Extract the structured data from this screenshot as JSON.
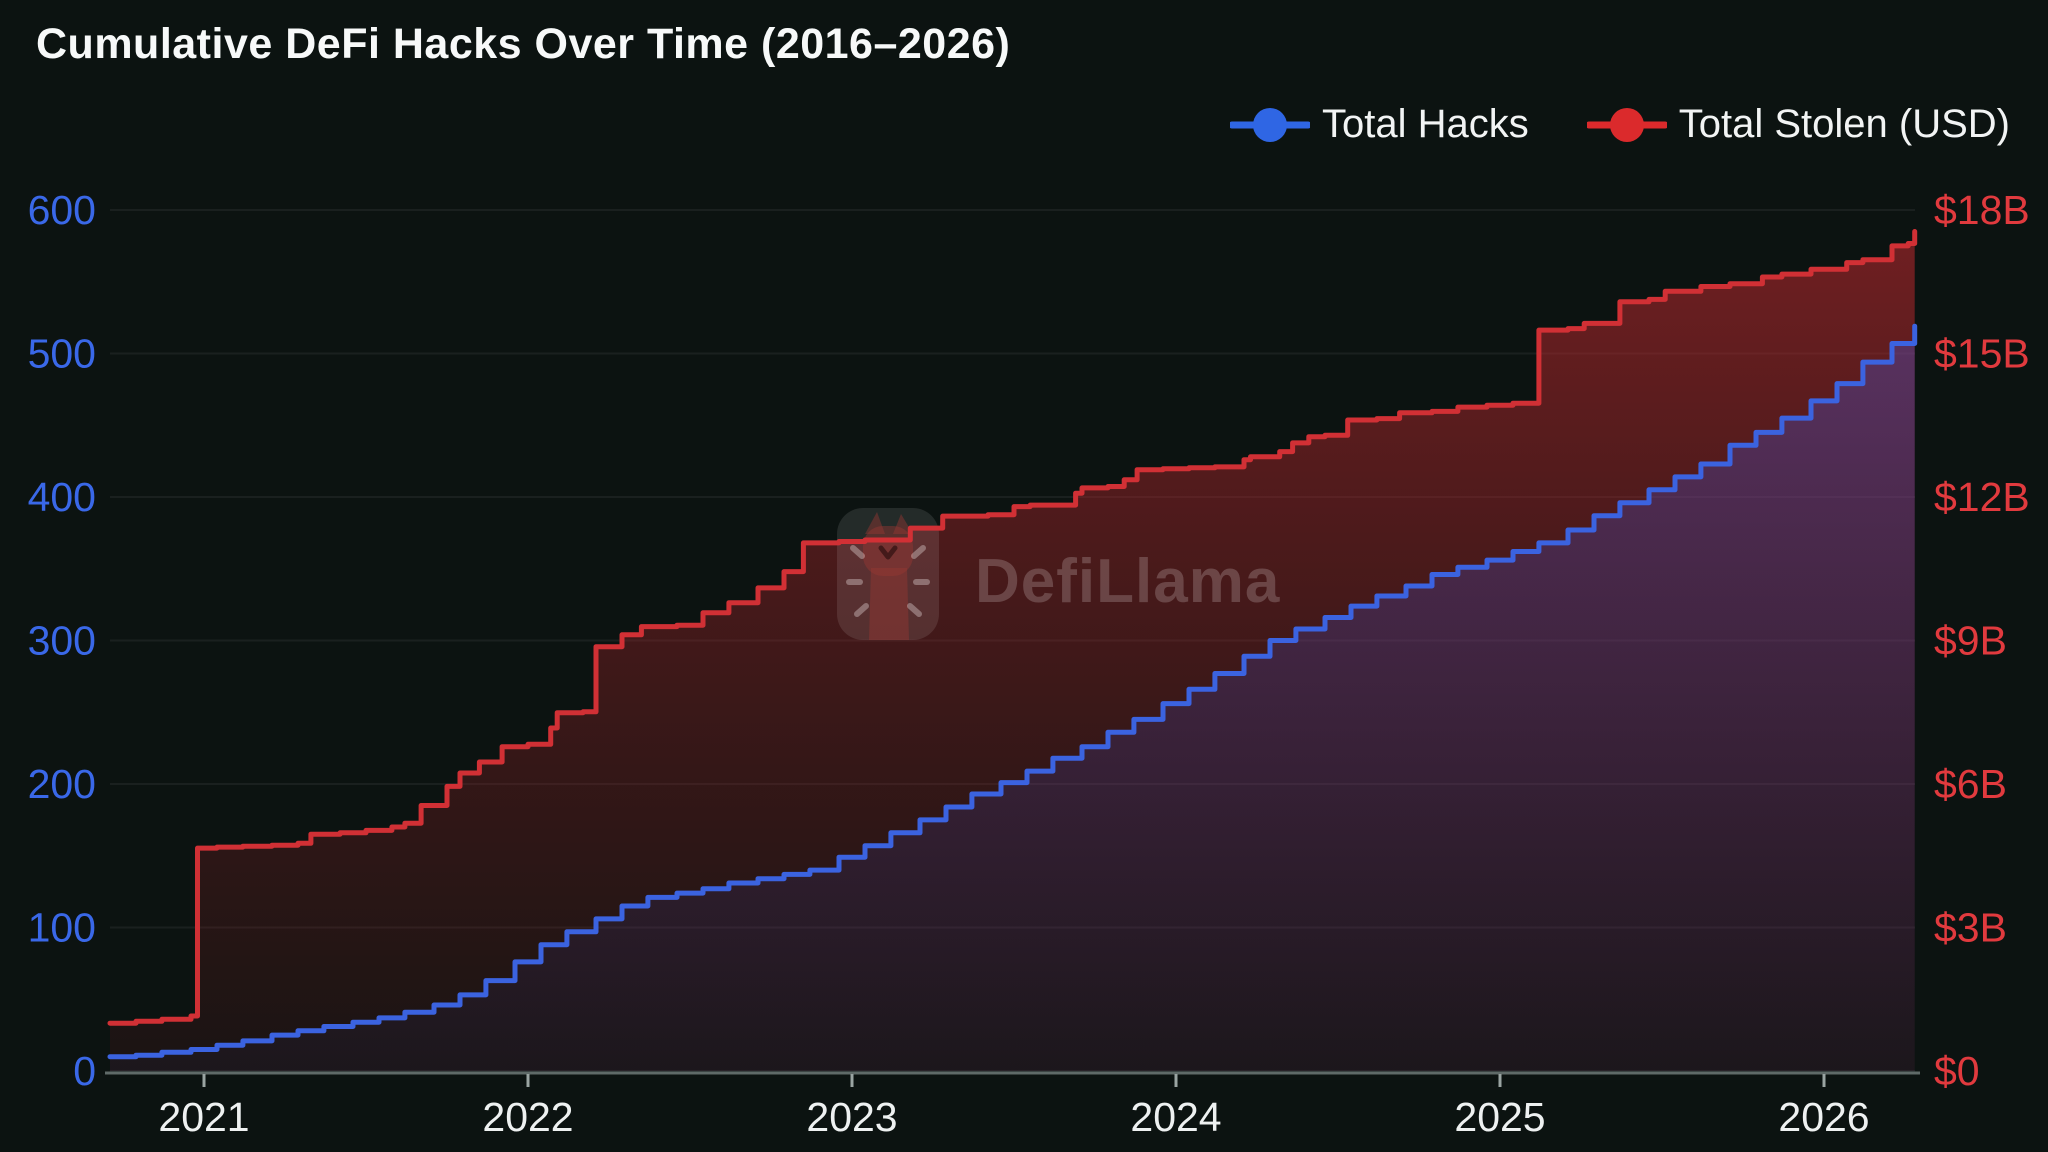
{
  "title": "Cumulative DeFi Hacks Over Time (2016–2026)",
  "colors": {
    "background": "#0c1311",
    "grid": "rgba(255,255,255,0.06)",
    "axis_line": "#5f6a68",
    "x_tick_mark": "#9aa4a2",
    "x_label": "#eef1f1",
    "left_axis_label": "#3a68e8",
    "right_axis_label": "#e13a3e",
    "title_text": "#f7f9f9",
    "watermark": "rgba(235,228,228,0.22)"
  },
  "legend": [
    {
      "label": "Total Hacks",
      "color": "#2f66e4"
    },
    {
      "label": "Total Stolen (USD)",
      "color": "#db2a2c"
    }
  ],
  "watermark": {
    "text": "DefiLlama",
    "icon": "llama-icon"
  },
  "axes": {
    "left": {
      "labels": [
        "600",
        "500",
        "400",
        "300",
        "200",
        "100",
        "0"
      ],
      "values": [
        600,
        500,
        400,
        300,
        200,
        100,
        0
      ],
      "max": 600,
      "color": "#3a68e8"
    },
    "right": {
      "labels": [
        "$18B",
        "$15B",
        "$12B",
        "$9B",
        "$6B",
        "$3B",
        "$0"
      ],
      "values": [
        18,
        15,
        12,
        9,
        6,
        3,
        0
      ],
      "max": 18,
      "color": "#e13a3e"
    },
    "x": {
      "labels": [
        "2021",
        "2022",
        "2023",
        "2024",
        "2025",
        "2026"
      ],
      "values": [
        2021,
        2022,
        2023,
        2024,
        2025,
        2026
      ]
    }
  },
  "chart_data": {
    "type": "area",
    "x_unit": "decimal_year",
    "x_range": [
      2020.71,
      2026.28
    ],
    "left_ylim": [
      0,
      600
    ],
    "right_ylim": [
      0,
      18
    ],
    "grid": true,
    "legend_position": "top-right",
    "series": [
      {
        "name": "Total Stolen (USD)",
        "axis": "right",
        "units": "USD billions",
        "color": "#d13035",
        "fill_top": "rgba(200,42,48,0.55)",
        "fill_bottom": "rgba(150,30,36,0.10)",
        "points": [
          [
            2020.71,
            1.0
          ],
          [
            2020.79,
            1.04
          ],
          [
            2020.87,
            1.08
          ],
          [
            2020.96,
            1.15
          ],
          [
            2020.98,
            4.66
          ],
          [
            2021.04,
            4.68
          ],
          [
            2021.12,
            4.7
          ],
          [
            2021.21,
            4.72
          ],
          [
            2021.29,
            4.76
          ],
          [
            2021.33,
            4.95
          ],
          [
            2021.42,
            4.98
          ],
          [
            2021.5,
            5.03
          ],
          [
            2021.58,
            5.1
          ],
          [
            2021.62,
            5.18
          ],
          [
            2021.67,
            5.55
          ],
          [
            2021.75,
            5.95
          ],
          [
            2021.79,
            6.23
          ],
          [
            2021.85,
            6.46
          ],
          [
            2021.92,
            6.78
          ],
          [
            2022.0,
            6.83
          ],
          [
            2022.07,
            7.17
          ],
          [
            2022.09,
            7.49
          ],
          [
            2022.17,
            7.51
          ],
          [
            2022.21,
            8.87
          ],
          [
            2022.29,
            9.12
          ],
          [
            2022.35,
            9.29
          ],
          [
            2022.46,
            9.32
          ],
          [
            2022.54,
            9.58
          ],
          [
            2022.62,
            9.79
          ],
          [
            2022.71,
            10.1
          ],
          [
            2022.79,
            10.44
          ],
          [
            2022.85,
            11.04
          ],
          [
            2022.96,
            11.07
          ],
          [
            2023.04,
            11.1
          ],
          [
            2023.18,
            11.35
          ],
          [
            2023.28,
            11.6
          ],
          [
            2023.42,
            11.63
          ],
          [
            2023.5,
            11.8
          ],
          [
            2023.55,
            11.83
          ],
          [
            2023.69,
            12.08
          ],
          [
            2023.71,
            12.19
          ],
          [
            2023.79,
            12.22
          ],
          [
            2023.84,
            12.36
          ],
          [
            2023.88,
            12.57
          ],
          [
            2023.96,
            12.59
          ],
          [
            2024.04,
            12.61
          ],
          [
            2024.12,
            12.63
          ],
          [
            2024.21,
            12.78
          ],
          [
            2024.23,
            12.84
          ],
          [
            2024.32,
            12.95
          ],
          [
            2024.36,
            13.13
          ],
          [
            2024.41,
            13.26
          ],
          [
            2024.46,
            13.29
          ],
          [
            2024.53,
            13.61
          ],
          [
            2024.62,
            13.64
          ],
          [
            2024.69,
            13.76
          ],
          [
            2024.79,
            13.79
          ],
          [
            2024.87,
            13.88
          ],
          [
            2024.96,
            13.92
          ],
          [
            2025.04,
            13.96
          ],
          [
            2025.12,
            15.49
          ],
          [
            2025.21,
            15.52
          ],
          [
            2025.26,
            15.63
          ],
          [
            2025.37,
            16.08
          ],
          [
            2025.46,
            16.13
          ],
          [
            2025.51,
            16.3
          ],
          [
            2025.62,
            16.4
          ],
          [
            2025.71,
            16.46
          ],
          [
            2025.81,
            16.6
          ],
          [
            2025.87,
            16.66
          ],
          [
            2025.96,
            16.76
          ],
          [
            2026.07,
            16.9
          ],
          [
            2026.12,
            16.96
          ],
          [
            2026.21,
            17.25
          ],
          [
            2026.26,
            17.3
          ],
          [
            2026.28,
            17.55
          ]
        ]
      },
      {
        "name": "Total Hacks",
        "axis": "left",
        "units": "count",
        "color": "#3b63e0",
        "fill_top": "rgba(70,90,220,0.40)",
        "fill_bottom": "rgba(60,70,190,0.05)",
        "points": [
          [
            2020.71,
            10
          ],
          [
            2020.79,
            11
          ],
          [
            2020.87,
            13
          ],
          [
            2020.96,
            15
          ],
          [
            2021.04,
            18
          ],
          [
            2021.12,
            21
          ],
          [
            2021.21,
            25
          ],
          [
            2021.29,
            28
          ],
          [
            2021.37,
            31
          ],
          [
            2021.46,
            34
          ],
          [
            2021.54,
            37
          ],
          [
            2021.62,
            41
          ],
          [
            2021.71,
            46
          ],
          [
            2021.79,
            53
          ],
          [
            2021.87,
            63
          ],
          [
            2021.96,
            76
          ],
          [
            2022.04,
            88
          ],
          [
            2022.12,
            97
          ],
          [
            2022.21,
            106
          ],
          [
            2022.29,
            115
          ],
          [
            2022.37,
            121
          ],
          [
            2022.46,
            124
          ],
          [
            2022.54,
            127
          ],
          [
            2022.62,
            131
          ],
          [
            2022.71,
            134
          ],
          [
            2022.79,
            137
          ],
          [
            2022.87,
            140
          ],
          [
            2022.96,
            149
          ],
          [
            2023.04,
            157
          ],
          [
            2023.12,
            166
          ],
          [
            2023.21,
            175
          ],
          [
            2023.29,
            184
          ],
          [
            2023.37,
            193
          ],
          [
            2023.46,
            201
          ],
          [
            2023.54,
            209
          ],
          [
            2023.62,
            218
          ],
          [
            2023.71,
            226
          ],
          [
            2023.79,
            236
          ],
          [
            2023.87,
            245
          ],
          [
            2023.96,
            256
          ],
          [
            2024.04,
            266
          ],
          [
            2024.12,
            277
          ],
          [
            2024.21,
            289
          ],
          [
            2024.29,
            300
          ],
          [
            2024.37,
            308
          ],
          [
            2024.46,
            316
          ],
          [
            2024.54,
            324
          ],
          [
            2024.62,
            331
          ],
          [
            2024.71,
            338
          ],
          [
            2024.79,
            346
          ],
          [
            2024.87,
            351
          ],
          [
            2024.96,
            356
          ],
          [
            2025.04,
            362
          ],
          [
            2025.12,
            368
          ],
          [
            2025.21,
            377
          ],
          [
            2025.29,
            387
          ],
          [
            2025.37,
            396
          ],
          [
            2025.46,
            405
          ],
          [
            2025.54,
            414
          ],
          [
            2025.62,
            423
          ],
          [
            2025.71,
            436
          ],
          [
            2025.79,
            445
          ],
          [
            2025.87,
            455
          ],
          [
            2025.96,
            467
          ],
          [
            2026.04,
            479
          ],
          [
            2026.12,
            494
          ],
          [
            2026.21,
            507
          ],
          [
            2026.28,
            519
          ]
        ]
      }
    ]
  }
}
